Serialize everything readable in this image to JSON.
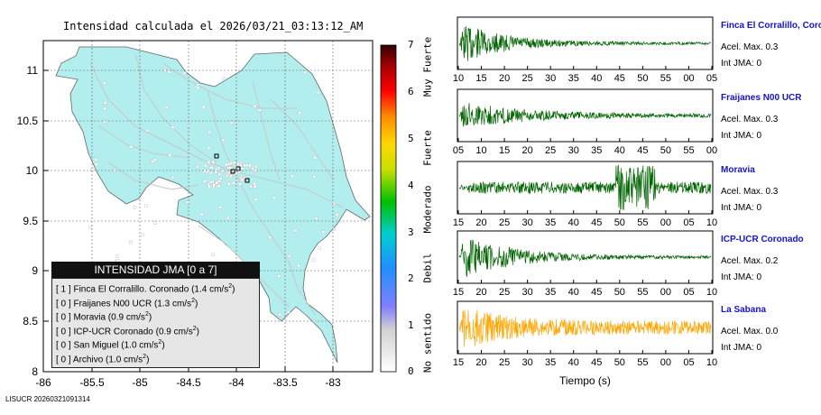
{
  "map": {
    "title": "Intensidad calculada el 2026/03/21_03:13:12_AM",
    "lat_ticks": [
      "11",
      "10.5",
      "10",
      "9.5",
      "9",
      "8.5",
      "8"
    ],
    "lon_ticks": [
      "-86",
      "-85.5",
      "-85",
      "-84.5",
      "-84",
      "-83.5",
      "-83"
    ],
    "land_color": "#b2eeee",
    "grid": true
  },
  "colorbar": {
    "ticks": [
      "7",
      "6",
      "5",
      "4",
      "3",
      "2",
      "1",
      "0"
    ],
    "categories": [
      "Muy Fuerte",
      "Fuerte",
      "Moderado",
      "Debil",
      "No sentido"
    ]
  },
  "legend": {
    "title": "INTENSIDAD JMA [0 a 7]",
    "rows": [
      {
        "level": "[ 1 ]",
        "text": "Finca El Corralillo. Coronado (1.4 cm/s",
        "sup": "2",
        "close": ")"
      },
      {
        "level": "[ 0 ]",
        "text": "Fraijanes N00 UCR (1.3 cm/s",
        "sup": "2",
        "close": ")"
      },
      {
        "level": "[ 0 ]",
        "text": "Moravia (0.9 cm/s",
        "sup": "2",
        "close": ")"
      },
      {
        "level": "[ 0 ]",
        "text": "ICP-UCR Coronado (0.9 cm/s",
        "sup": "2",
        "close": ")"
      },
      {
        "level": "[ 0 ]",
        "text": "San Miguel (1.0 cm/s",
        "sup": "2",
        "close": ")"
      },
      {
        "level": "[ 0 ]",
        "text": "Archivo (1.0 cm/s",
        "sup": "2",
        "close": ")"
      }
    ]
  },
  "waveforms": {
    "xlabel": "Tiempo (s)",
    "traces": [
      {
        "name": "Finca El Corralillo, Coro",
        "acel": "Acel. Max. 0.3",
        "int": "Int JMA: 0",
        "color": "#006400",
        "ticks": [
          "10",
          "15",
          "20",
          "25",
          "30",
          "35",
          "40",
          "45",
          "50",
          "55",
          "00",
          "05"
        ]
      },
      {
        "name": "Fraijanes N00 UCR",
        "acel": "Acel. Max. 0.3",
        "int": "Int JMA: 0",
        "color": "#006400",
        "ticks": [
          "05",
          "10",
          "15",
          "20",
          "25",
          "30",
          "35",
          "40",
          "45",
          "50",
          "55",
          "00"
        ]
      },
      {
        "name": "Moravia",
        "acel": "Acel. Max. 0.3",
        "int": "Int JMA: 0",
        "color": "#006400",
        "ticks": [
          "15",
          "20",
          "25",
          "30",
          "35",
          "40",
          "45",
          "50",
          "55",
          "00",
          "05",
          "10"
        ]
      },
      {
        "name": "ICP-UCR Coronado",
        "acel": "Acel. Max. 0.2",
        "int": "Int JMA: 0",
        "color": "#006400",
        "ticks": [
          "15",
          "20",
          "25",
          "30",
          "35",
          "40",
          "45",
          "50",
          "55",
          "00",
          "05",
          "10"
        ]
      },
      {
        "name": "La Sabana",
        "acel": "Acel. Max. 0.0",
        "int": "Int JMA: 0",
        "color": "#ffa500",
        "ticks": [
          "15",
          "20",
          "25",
          "30",
          "35",
          "40",
          "45",
          "50",
          "55",
          "00",
          "05",
          "10"
        ]
      }
    ]
  },
  "footer": "LISUCR 20260321091314"
}
